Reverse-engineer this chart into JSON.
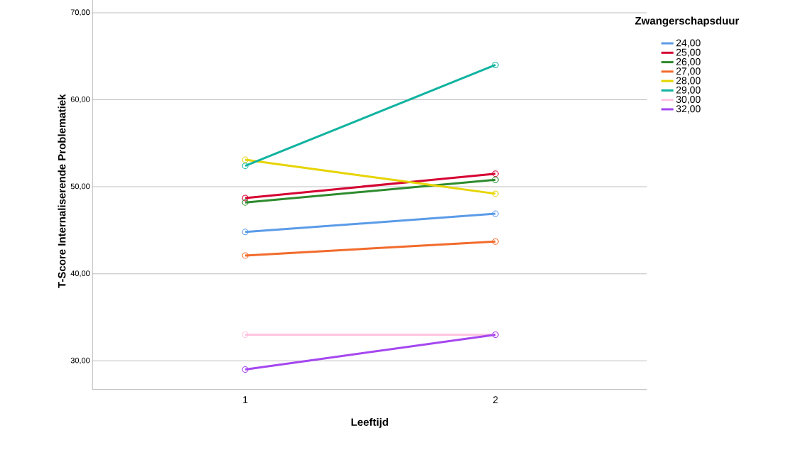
{
  "chart_data": {
    "type": "line",
    "xlabel": "Leeftijd",
    "ylabel": "T-Score Internaliserende Problematiek",
    "legend_title": "Zwangerschapsduur",
    "categories": [
      "1",
      "2"
    ],
    "series": [
      {
        "name": "24,00",
        "color": "#5b9be8",
        "values": [
          44.8,
          46.9
        ]
      },
      {
        "name": "25,00",
        "color": "#d50032",
        "values": [
          48.7,
          51.5
        ]
      },
      {
        "name": "26,00",
        "color": "#2e8b2e",
        "values": [
          48.2,
          50.8
        ]
      },
      {
        "name": "27,00",
        "color": "#f26b2c",
        "values": [
          42.1,
          43.7
        ]
      },
      {
        "name": "28,00",
        "color": "#e6d400",
        "values": [
          53.1,
          49.2
        ]
      },
      {
        "name": "29,00",
        "color": "#10b3a0",
        "values": [
          52.4,
          64.0
        ]
      },
      {
        "name": "30,00",
        "color": "#ffc4e0",
        "values": [
          33.0,
          33.0
        ]
      },
      {
        "name": "32,00",
        "color": "#a547f0",
        "values": [
          29.0,
          33.0
        ]
      }
    ],
    "ylim": [
      26.7,
      72.3
    ],
    "yticks": [
      {
        "value": 30,
        "label": "30,00"
      },
      {
        "value": 40,
        "label": "40,00"
      },
      {
        "value": 50,
        "label": "50,00"
      },
      {
        "value": 60,
        "label": "60,00"
      },
      {
        "value": 70,
        "label": "70,00"
      }
    ],
    "grid": "y",
    "legend": "top right",
    "marker": "circle",
    "line_style": "solid"
  }
}
